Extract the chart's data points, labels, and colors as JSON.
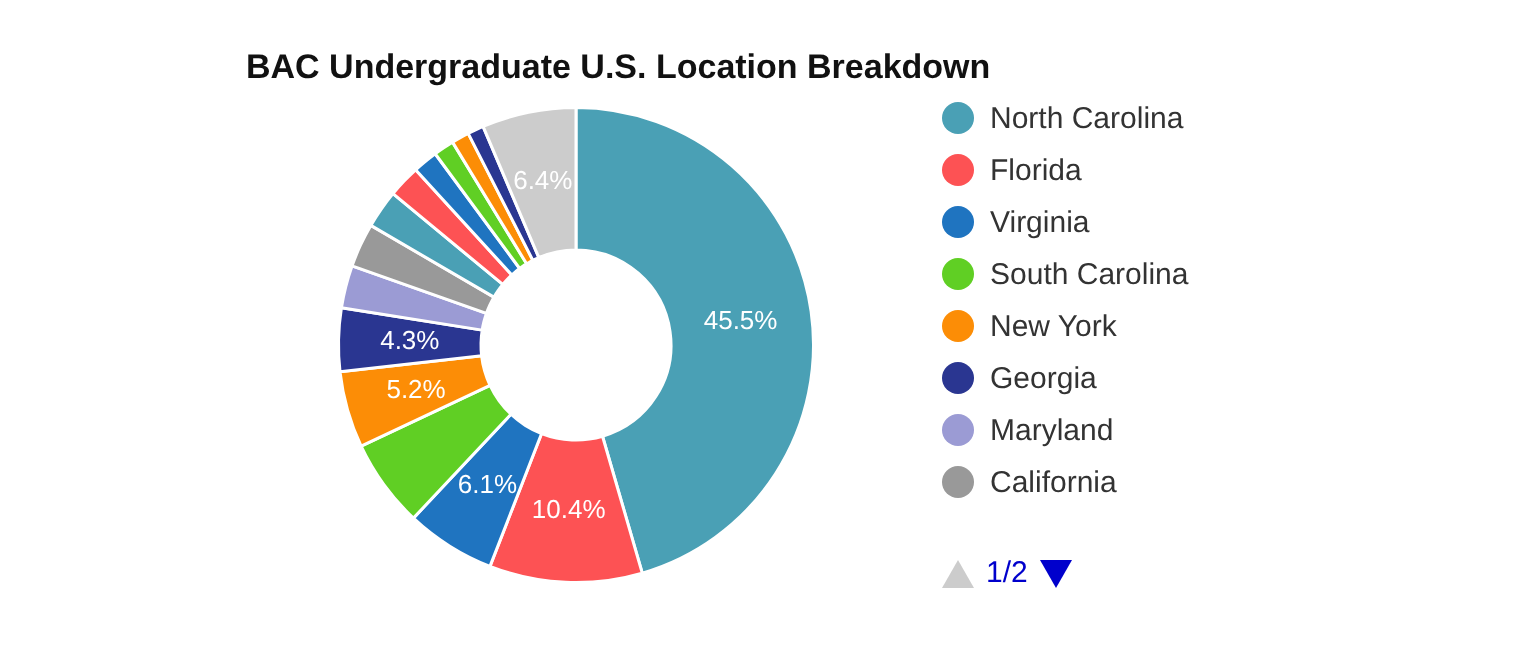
{
  "chart_data": {
    "type": "donut",
    "title": "BAC Undergraduate U.S. Location Breakdown",
    "categories": [
      "North Carolina",
      "Florida",
      "Virginia",
      "South Carolina",
      "New York",
      "Georgia",
      "Maryland",
      "California",
      null,
      null,
      null,
      null,
      null,
      null,
      null
    ],
    "values": [
      45.5,
      10.4,
      6.1,
      6.0,
      5.2,
      4.3,
      2.9,
      3.0,
      2.6,
      2.2,
      1.7,
      1.4,
      1.2,
      1.1,
      6.4
    ],
    "colors": [
      "#4aa0b5",
      "#fd5254",
      "#1f74c0",
      "#60cf24",
      "#fc8d06",
      "#2a3691",
      "#9b9bd4",
      "#999999",
      "#4aa0b5",
      "#fd5254",
      "#1f74c0",
      "#60cf24",
      "#fc8d06",
      "#2a3691",
      "#cccccc"
    ],
    "value_labels": [
      "45.5%",
      "10.4%",
      "6.1%",
      null,
      "5.2%",
      "4.3%",
      null,
      null,
      null,
      null,
      null,
      null,
      null,
      null,
      "6.4%"
    ],
    "legend": "right",
    "annotations": [
      "1/2"
    ]
  }
}
